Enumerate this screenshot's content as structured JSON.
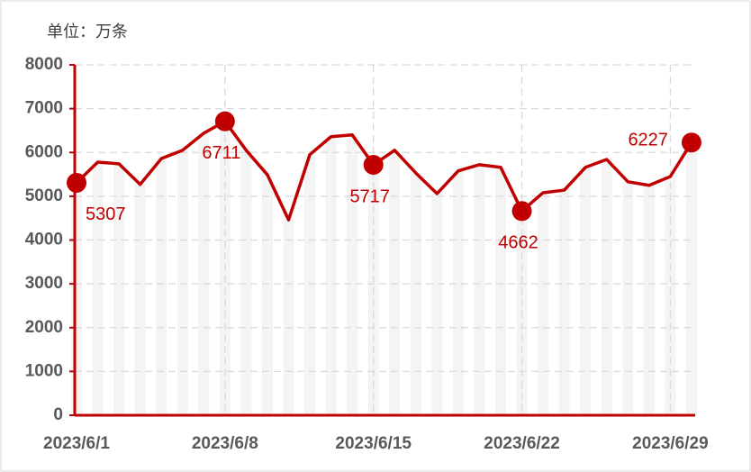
{
  "chart_data": {
    "type": "line",
    "title": "单位：万条",
    "categories": [
      "2023/6/1",
      null,
      null,
      null,
      null,
      null,
      null,
      "2023/6/8",
      null,
      null,
      null,
      null,
      null,
      null,
      "2023/6/15",
      null,
      null,
      null,
      null,
      null,
      null,
      "2023/6/22",
      null,
      null,
      null,
      null,
      null,
      null,
      "2023/6/29",
      null
    ],
    "values": [
      5307,
      5780,
      5740,
      5270,
      5860,
      6050,
      6440,
      6711,
      6050,
      5490,
      4460,
      5950,
      6360,
      6400,
      5717,
      6050,
      5530,
      5060,
      5580,
      5720,
      5660,
      4662,
      5080,
      5140,
      5660,
      5840,
      5330,
      5250,
      5450,
      6227
    ],
    "color": "#c00000",
    "labeled_points": [
      0,
      7,
      14,
      21,
      29
    ],
    "ylim": [
      0,
      8000
    ],
    "yticks": [
      0,
      1000,
      2000,
      3000,
      4000,
      5000,
      6000,
      7000,
      8000
    ],
    "grid": true
  }
}
